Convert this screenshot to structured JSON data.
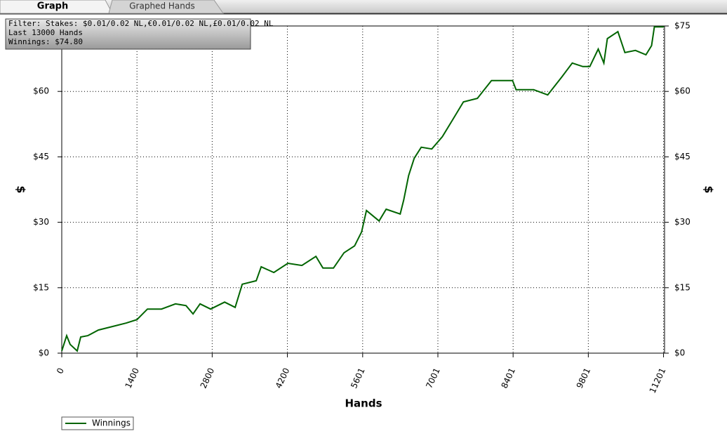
{
  "tabs": [
    "Graph",
    "Graphed Hands"
  ],
  "info_box": [
    "Filter: Stakes: $0.01/0.02 NL,€0.01/0.02 NL,£0.01/0.02 NL",
    "Last  13000 Hands",
    "Winnings: $74.80"
  ],
  "chart_data": {
    "type": "line",
    "xlabel": "Hands",
    "ylabel": "$",
    "y2label": "$",
    "x": [
      0,
      92,
      157,
      288,
      353,
      484,
      680,
      941,
      1202,
      1400,
      1595,
      1856,
      2117,
      2313,
      2444,
      2575,
      2771,
      3032,
      3228,
      3359,
      3620,
      3712,
      3947,
      4209,
      4470,
      4731,
      4862,
      5058,
      5254,
      5450,
      5581,
      5672,
      5907,
      6038,
      6300,
      6365,
      6456,
      6561,
      6692,
      6888,
      7084,
      7280,
      7476,
      7737,
      7999,
      8391,
      8456,
      8783,
      9045,
      9306,
      9502,
      9698,
      9829,
      9986,
      10090,
      10155,
      10351,
      10482,
      10678,
      10874,
      10979,
      11031,
      11210
    ],
    "series": [
      {
        "name": "Winnings",
        "color": "#006400",
        "values": [
          0.5,
          4,
          2,
          0.5,
          3.7,
          4,
          5.3,
          6.1,
          6.9,
          7.7,
          10.1,
          10.1,
          11.3,
          10.9,
          9,
          11.3,
          10.1,
          11.7,
          10.5,
          15.8,
          16.6,
          19.8,
          18.5,
          20.6,
          20.1,
          22.2,
          19.5,
          19.5,
          23,
          24.6,
          27.8,
          32.7,
          30.3,
          33,
          31.9,
          35.1,
          40.7,
          44.7,
          47.2,
          46.8,
          49.6,
          53.6,
          57.6,
          58.4,
          62.5,
          62.5,
          60.4,
          60.4,
          59.2,
          63.3,
          66.5,
          65.7,
          65.7,
          69.7,
          66.5,
          72.1,
          73.7,
          68.9,
          69.4,
          68.4,
          70.5,
          74.8,
          74.8
        ]
      }
    ],
    "xlim": [
      0,
      11220
    ],
    "xticks": [
      0,
      1400,
      2800,
      4200,
      5601,
      7001,
      8401,
      9801,
      11201
    ],
    "ylim": [
      0,
      75
    ],
    "yticks": [
      {
        "value": 0,
        "label": "$0"
      },
      {
        "value": 15,
        "label": "$15"
      },
      {
        "value": 30,
        "label": "$30"
      },
      {
        "value": 45,
        "label": "$45"
      },
      {
        "value": 60,
        "label": "$60"
      },
      {
        "value": 75,
        "label": "$75"
      }
    ],
    "y2lim": [
      0,
      75
    ],
    "y2ticks": [
      {
        "value": 0,
        "label": "$0"
      },
      {
        "value": 15,
        "label": "$15"
      },
      {
        "value": 30,
        "label": "$30"
      },
      {
        "value": 45,
        "label": "$45"
      },
      {
        "value": 60,
        "label": "$60"
      },
      {
        "value": 75,
        "label": "$75"
      }
    ],
    "grid": true
  }
}
